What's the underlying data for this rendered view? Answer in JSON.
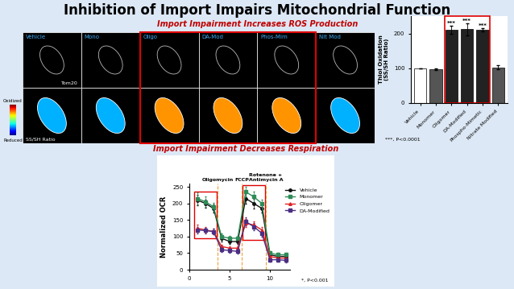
{
  "title": "Inhibition of Import Impairs Mitochondrial Function",
  "headings": [
    "Import Impairment Increases ROS Production",
    "Import Impairment Decreases Respiration"
  ],
  "microscopy": {
    "labels": [
      "Vehicle",
      "Mono",
      "Oligo",
      "DA-Mod",
      "Phos-Mim",
      "Nit Mod"
    ],
    "stain": "Tom20",
    "ratio_label": "SS/SH Ratio",
    "scale": {
      "top": "Oxidized",
      "bottom": "Reduced"
    }
  },
  "chart_data": [
    {
      "type": "bar",
      "categories": [
        "Vehicle",
        "Monomer",
        "Oligomer",
        "DA-Modified",
        "Phospho-Mimetic",
        "Nitrate Modified"
      ],
      "values": [
        100,
        97,
        210,
        212,
        210,
        103
      ],
      "errors": [
        0,
        3,
        12,
        18,
        5,
        5
      ],
      "colors": [
        "#ffffff",
        "#555555",
        "#222222",
        "#222222",
        "#222222",
        "#555555"
      ],
      "y_label": "Thiol Oxidation\n(SS/SH Ratio)",
      "ylim": [
        0,
        250
      ],
      "yticks": [
        0,
        100,
        200
      ],
      "annotations": [
        {
          "category": "Oligomer",
          "text": "***"
        },
        {
          "category": "DA-Modified",
          "text": "***"
        },
        {
          "category": "Phospho-Mimetic",
          "text": "***"
        }
      ],
      "note": "***, P<0.0001"
    },
    {
      "type": "line",
      "x": [
        1,
        2,
        3,
        4,
        5,
        6,
        7,
        8,
        9,
        10,
        11,
        12
      ],
      "series": [
        {
          "name": "Vehicle",
          "color": "#111111",
          "marker": "o",
          "values": [
            210,
            200,
            185,
            95,
            85,
            85,
            215,
            200,
            185,
            45,
            40,
            40
          ],
          "errors": [
            15,
            12,
            12,
            10,
            8,
            8,
            15,
            15,
            12,
            6,
            5,
            5
          ]
        },
        {
          "name": "Monomer",
          "color": "#2e8b57",
          "marker": "s",
          "values": [
            215,
            205,
            190,
            100,
            95,
            95,
            235,
            220,
            200,
            50,
            45,
            45
          ],
          "errors": [
            18,
            15,
            12,
            10,
            8,
            8,
            15,
            15,
            12,
            6,
            5,
            5
          ]
        },
        {
          "name": "Oligomer",
          "color": "#e02020",
          "marker": "^",
          "values": [
            125,
            120,
            115,
            70,
            65,
            65,
            140,
            135,
            120,
            40,
            35,
            35
          ],
          "errors": [
            10,
            8,
            8,
            6,
            6,
            6,
            12,
            12,
            10,
            5,
            5,
            5
          ]
        },
        {
          "name": "DA-Modified",
          "color": "#4b2e83",
          "marker": "s",
          "values": [
            120,
            118,
            115,
            60,
            58,
            55,
            145,
            130,
            110,
            30,
            30,
            28
          ],
          "errors": [
            10,
            8,
            8,
            6,
            6,
            6,
            12,
            12,
            10,
            5,
            5,
            5
          ]
        }
      ],
      "events": [
        {
          "x": 3.5,
          "label": "Oligomycin"
        },
        {
          "x": 6.5,
          "label": "FCCP"
        },
        {
          "x": 9.5,
          "label": "Rotenone +\nAntimycin A"
        }
      ],
      "y_label": "Normalized OCR",
      "xlim": [
        0,
        12.5
      ],
      "xticks": [
        0,
        5,
        10
      ],
      "ylim": [
        0,
        260
      ],
      "yticks": [
        0,
        50,
        100,
        150,
        200,
        250
      ],
      "legend": "upper right",
      "note": "*, P<0.001"
    }
  ]
}
